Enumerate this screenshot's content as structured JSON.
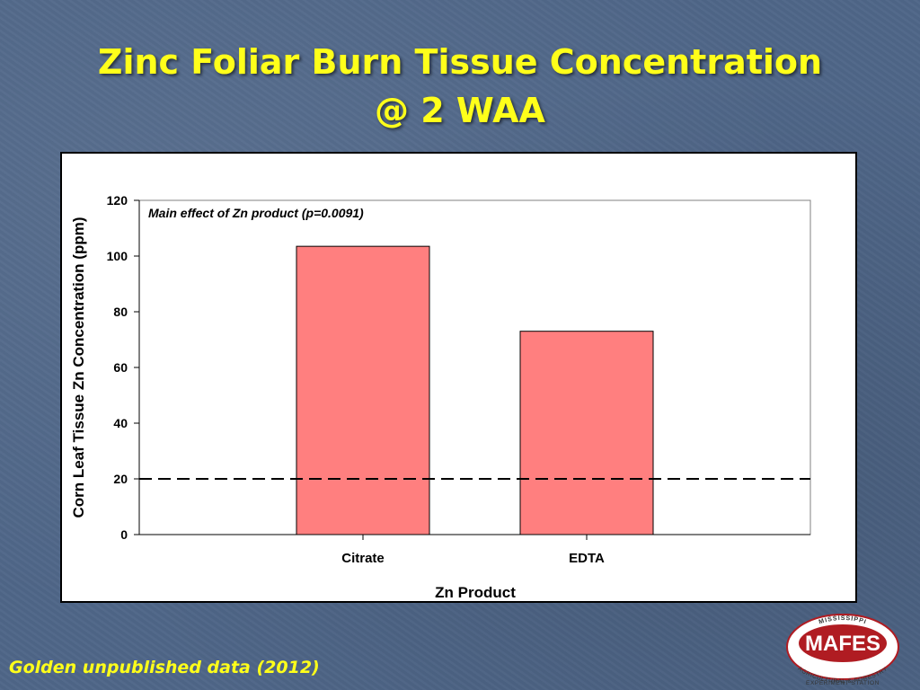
{
  "slide": {
    "title_line1": "Zinc Foliar Burn Tissue Concentration",
    "title_line2": "@ 2 WAA",
    "footer": "Golden unpublished data (2012)",
    "title_color": "#ffff1a"
  },
  "logo": {
    "top_text": "MISSISSIPPI",
    "name": "MAFES",
    "bottom_line1": "AGRICULTURAL & FORESTRY",
    "bottom_line2": "EXPERIMENT STATION",
    "color": "#b01c22"
  },
  "chart_data": {
    "type": "bar",
    "title": "",
    "annotation": "Main effect of Zn product (p=0.0091)",
    "categories": [
      "Citrate",
      "EDTA"
    ],
    "values": [
      103.5,
      73
    ],
    "xlabel": "Zn Product",
    "ylabel": "Corn Leaf Tissue Zn Concentration (ppm)",
    "ylim": [
      0,
      120
    ],
    "yticks": [
      0,
      20,
      40,
      60,
      80,
      100,
      120
    ],
    "reference_line": 20,
    "bar_color": "#ff7f7f",
    "grid": false,
    "legend": "none"
  }
}
